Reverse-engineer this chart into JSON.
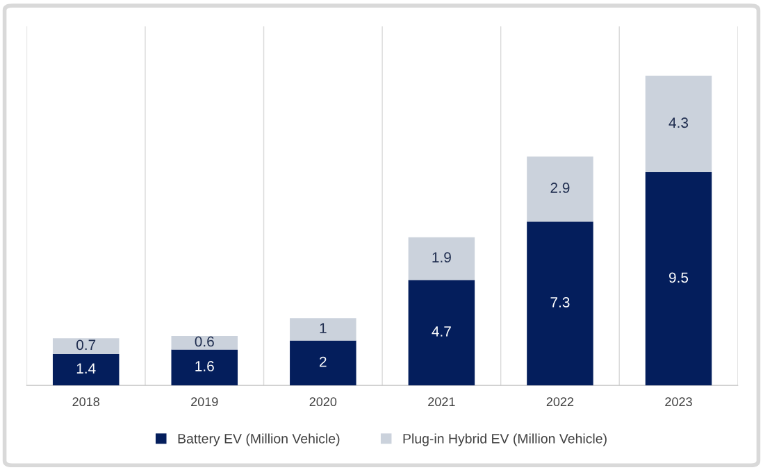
{
  "chart_data": {
    "type": "bar",
    "stacked": true,
    "categories": [
      "2018",
      "2019",
      "2020",
      "2021",
      "2022",
      "2023"
    ],
    "series": [
      {
        "name": "Battery EV (Million Vehicle)",
        "color": "#041e5c",
        "values": [
          1.4,
          1.6,
          2,
          4.7,
          7.3,
          9.5
        ]
      },
      {
        "name": "Plug-in Hybrid EV (Million Vehicle)",
        "color": "#cbd2dc",
        "values": [
          0.7,
          0.6,
          1,
          1.9,
          2.9,
          4.3
        ]
      }
    ],
    "ylim": [
      0,
      16
    ],
    "tick_labels": "x",
    "data_labels": true,
    "grid": "x",
    "legend": "bottom"
  }
}
